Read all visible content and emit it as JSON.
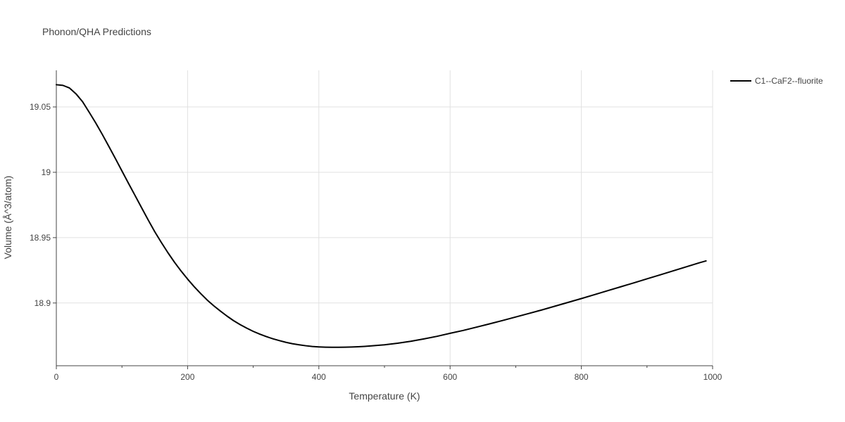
{
  "chart_data": {
    "type": "line",
    "title": "Phonon/QHA Predictions",
    "xlabel": "Temperature (K)",
    "ylabel": "Volume (Å^3/atom)",
    "xlim": [
      0,
      1000
    ],
    "ylim": [
      18.852,
      19.078
    ],
    "x_major_ticks": [
      0,
      200,
      400,
      600,
      800,
      1000
    ],
    "x_tick_labels": [
      "0",
      "200",
      "400",
      "600",
      "800",
      "1000"
    ],
    "x_minor_ticks": [
      100,
      300,
      500,
      700,
      900
    ],
    "y_ticks": [
      18.9,
      18.95,
      19.0,
      19.05
    ],
    "y_tick_labels": [
      "18.9",
      "18.95",
      "19",
      "19.05"
    ],
    "grid": true,
    "legend_position": "top-right",
    "series": [
      {
        "name": "C1--CaF2--fluorite",
        "color": "#000000",
        "x": [
          0,
          10,
          20,
          30,
          40,
          50,
          60,
          70,
          80,
          90,
          100,
          110,
          120,
          130,
          140,
          150,
          160,
          170,
          180,
          190,
          200,
          210,
          220,
          230,
          240,
          250,
          260,
          270,
          280,
          290,
          300,
          310,
          320,
          330,
          340,
          350,
          360,
          370,
          380,
          390,
          400,
          410,
          420,
          430,
          440,
          450,
          460,
          470,
          480,
          490,
          500,
          520,
          540,
          560,
          580,
          600,
          620,
          640,
          660,
          680,
          700,
          720,
          740,
          760,
          780,
          800,
          820,
          840,
          860,
          880,
          900,
          920,
          940,
          960,
          980,
          990
        ],
        "y": [
          19.067,
          19.0665,
          19.0645,
          19.06,
          19.054,
          19.046,
          19.0378,
          19.029,
          19.0198,
          19.0105,
          19.001,
          18.9915,
          18.9822,
          18.9728,
          18.9635,
          18.9545,
          18.9463,
          18.9385,
          18.9312,
          18.9245,
          18.9183,
          18.9125,
          18.9072,
          18.9022,
          18.8978,
          18.8938,
          18.89,
          18.8865,
          18.8835,
          18.8808,
          18.8783,
          18.8762,
          18.8743,
          18.8726,
          18.8712,
          18.8699,
          18.8688,
          18.868,
          18.8673,
          18.8667,
          18.8664,
          18.8662,
          18.8661,
          18.8661,
          18.8662,
          18.8663,
          18.8665,
          18.8668,
          18.8672,
          18.8676,
          18.868,
          18.8692,
          18.8707,
          18.8725,
          18.8745,
          18.8768,
          18.879,
          18.8815,
          18.884,
          18.8866,
          18.8893,
          18.892,
          18.8947,
          18.8976,
          18.9005,
          18.9034,
          18.9064,
          18.9094,
          18.9124,
          18.9154,
          18.9185,
          18.9215,
          18.9246,
          18.9277,
          18.9308,
          18.9322
        ]
      }
    ]
  }
}
